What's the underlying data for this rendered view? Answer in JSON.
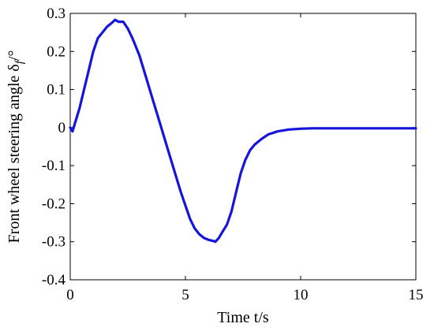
{
  "chart_data": {
    "type": "line",
    "title": "",
    "xlabel": "Time t/s",
    "ylabel": "Front wheel steering angle δ",
    "ylabel_subscript": "f",
    "ylabel_unit": "/°",
    "xlim": [
      0,
      15
    ],
    "ylim": [
      -0.4,
      0.3
    ],
    "xticks": [
      0,
      5,
      10,
      15
    ],
    "xtick_labels": [
      "0",
      "5",
      "10",
      "15"
    ],
    "yticks": [
      -0.4,
      -0.3,
      -0.2,
      -0.1,
      0,
      0.1,
      0.2,
      0.3
    ],
    "ytick_labels": [
      "-0.4",
      "-0.3",
      "-0.2",
      "-0.1",
      "0",
      "0.1",
      "0.2",
      "0.3"
    ],
    "grid": false,
    "legend": "none",
    "colors": {
      "series": "#1515dc",
      "axes": "#000000"
    },
    "series": [
      {
        "x": [
          0,
          0.1,
          0.2,
          0.4,
          0.6,
          0.8,
          1.0,
          1.2,
          1.4,
          1.6,
          1.8,
          1.95,
          2.1,
          2.3,
          2.5,
          2.7,
          3.0,
          3.3,
          3.6,
          3.9,
          4.2,
          4.5,
          4.8,
          5.0,
          5.2,
          5.4,
          5.6,
          5.8,
          6.0,
          6.2,
          6.3,
          6.45,
          6.6,
          6.8,
          7.0,
          7.2,
          7.4,
          7.6,
          7.8,
          8.0,
          8.3,
          8.6,
          9.0,
          9.5,
          10.0,
          10.5,
          11.0,
          12.0,
          13.0,
          14.0,
          15.0
        ],
        "y": [
          0.0,
          -0.01,
          0.01,
          0.05,
          0.1,
          0.15,
          0.2,
          0.235,
          0.25,
          0.265,
          0.275,
          0.283,
          0.278,
          0.278,
          0.26,
          0.235,
          0.19,
          0.13,
          0.07,
          0.01,
          -0.05,
          -0.11,
          -0.17,
          -0.205,
          -0.24,
          -0.265,
          -0.28,
          -0.29,
          -0.295,
          -0.298,
          -0.3,
          -0.29,
          -0.275,
          -0.255,
          -0.22,
          -0.17,
          -0.12,
          -0.085,
          -0.06,
          -0.045,
          -0.03,
          -0.018,
          -0.01,
          -0.005,
          -0.003,
          -0.002,
          -0.002,
          -0.002,
          -0.002,
          -0.002,
          -0.002
        ]
      }
    ]
  }
}
